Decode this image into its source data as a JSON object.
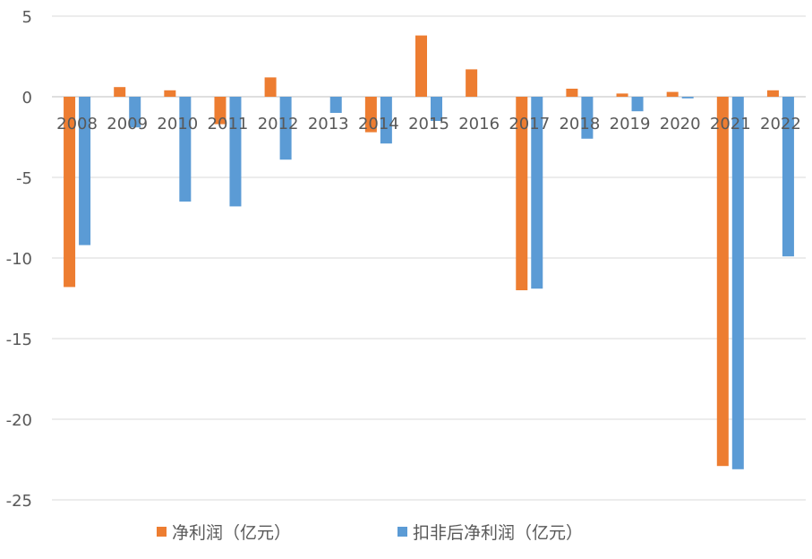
{
  "chart_data": {
    "type": "bar",
    "categories": [
      "2008",
      "2009",
      "2010",
      "2011",
      "2012",
      "2013",
      "2014",
      "2015",
      "2016",
      "2017",
      "2018",
      "2019",
      "2020",
      "2021",
      "2022"
    ],
    "series": [
      {
        "name": "净利润（亿元）",
        "color": "#ED7D31",
        "values": [
          -11.8,
          0.6,
          0.4,
          -1.7,
          1.2,
          0,
          -2.2,
          3.8,
          1.7,
          -12.0,
          0.5,
          0.2,
          0.3,
          -22.9,
          0.4
        ]
      },
      {
        "name": "扣非后净利润（亿元）",
        "color": "#5B9BD5",
        "values": [
          -9.2,
          -1.9,
          -6.5,
          -6.8,
          -3.9,
          -1.0,
          -2.9,
          -1.5,
          0,
          -11.9,
          -2.6,
          -0.9,
          -0.1,
          -23.1,
          -9.9
        ]
      }
    ],
    "y_ticks": [
      "5",
      "0",
      "-5",
      "-10",
      "-15",
      "-20",
      "-25"
    ],
    "ylim": [
      -25,
      5
    ],
    "grid": true,
    "legend_position": "bottom"
  }
}
